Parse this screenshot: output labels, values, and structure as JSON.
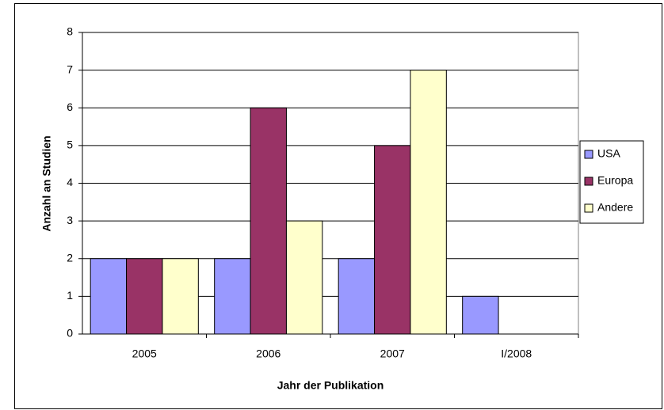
{
  "chart_data": {
    "type": "bar",
    "xlabel": "Jahr der Publikation",
    "ylabel": "Anzahl an Studien",
    "categories": [
      "2005",
      "2006",
      "2007",
      "I/2008"
    ],
    "series": [
      {
        "name": "USA",
        "color": "#9999ff",
        "values": [
          2,
          2,
          2,
          1
        ]
      },
      {
        "name": "Europa",
        "color": "#993366",
        "values": [
          2,
          6,
          5,
          0
        ]
      },
      {
        "name": "Andere",
        "color": "#ffffcc",
        "values": [
          2,
          3,
          7,
          0
        ]
      }
    ],
    "ylim": [
      0,
      8
    ],
    "yticks": [
      0,
      1,
      2,
      3,
      4,
      5,
      6,
      7,
      8
    ],
    "grid": true,
    "legend": "right"
  }
}
